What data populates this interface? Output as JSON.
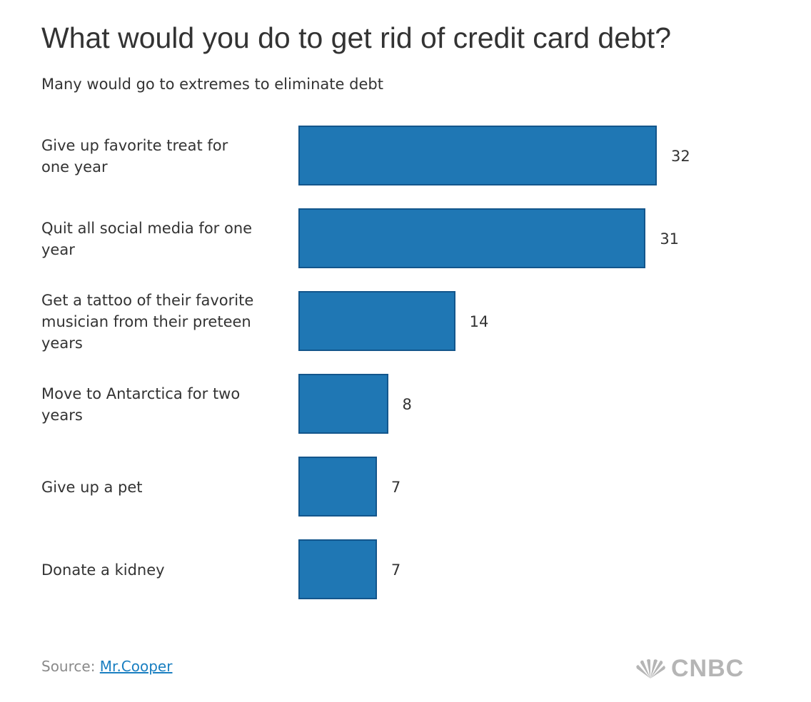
{
  "chart_data": {
    "type": "bar",
    "orientation": "horizontal",
    "title": "What would you do to get rid of credit card debt?",
    "subtitle": "Many would go to extremes to eliminate debt",
    "categories": [
      "Give up favorite treat for\none year",
      "Quit all social media for one\nyear",
      "Get a tattoo of their favorite\nmusician from their preteen\nyears",
      "Move to Antarctica for two\nyears",
      "Give up a pet",
      "Donate a kidney"
    ],
    "values": [
      32,
      31,
      14,
      8,
      7,
      7
    ],
    "color": "#1f77b4",
    "source_label": "Source:",
    "source_link": "Mr.Cooper",
    "logo": "CNBC"
  }
}
